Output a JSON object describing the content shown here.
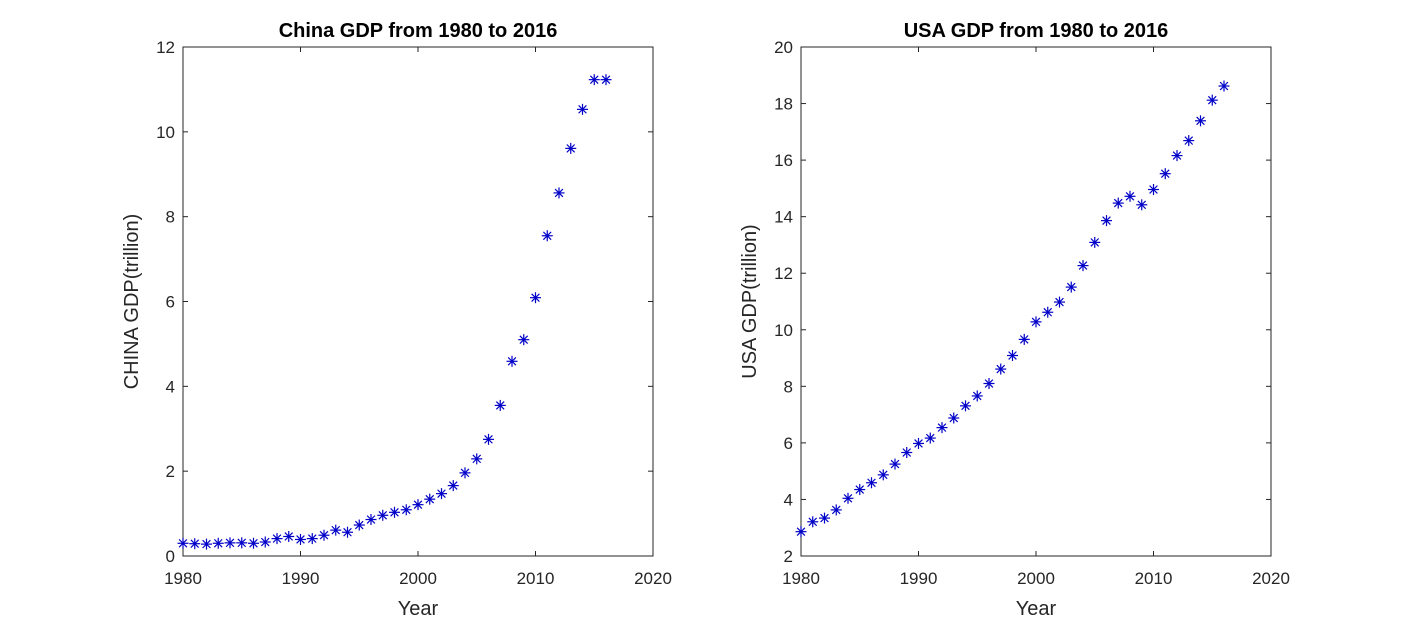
{
  "chart_data": [
    {
      "type": "scatter",
      "title": "China GDP from 1980 to 2016",
      "xlabel": "Year",
      "ylabel": "CHINA GDP(trillion)",
      "xlim": [
        1980,
        2020
      ],
      "ylim": [
        0,
        12
      ],
      "xticks": [
        1980,
        1990,
        2000,
        2010,
        2020
      ],
      "yticks": [
        0,
        2,
        4,
        6,
        8,
        10,
        12
      ],
      "marker": "asterisk",
      "color": "#0000c8",
      "grid": false,
      "x": [
        1980,
        1981,
        1982,
        1983,
        1984,
        1985,
        1986,
        1987,
        1988,
        1989,
        1990,
        1991,
        1992,
        1993,
        1994,
        1995,
        1996,
        1997,
        1998,
        1999,
        2000,
        2001,
        2002,
        2003,
        2004,
        2005,
        2006,
        2007,
        2008,
        2009,
        2010,
        2011,
        2012,
        2013,
        2014,
        2015,
        2016
      ],
      "y": [
        0.3,
        0.29,
        0.28,
        0.3,
        0.31,
        0.31,
        0.3,
        0.33,
        0.41,
        0.46,
        0.39,
        0.41,
        0.49,
        0.61,
        0.56,
        0.73,
        0.86,
        0.96,
        1.03,
        1.09,
        1.21,
        1.34,
        1.47,
        1.66,
        1.96,
        2.29,
        2.75,
        3.55,
        4.59,
        5.1,
        6.09,
        7.55,
        8.56,
        9.61,
        10.53,
        11.23,
        11.23
      ]
    },
    {
      "type": "scatter",
      "title": "USA GDP from 1980 to 2016",
      "xlabel": "Year",
      "ylabel": "USA GDP(trillion)",
      "xlim": [
        1980,
        2020
      ],
      "ylim": [
        2,
        20
      ],
      "xticks": [
        1980,
        1990,
        2000,
        2010,
        2020
      ],
      "yticks": [
        2,
        4,
        6,
        8,
        10,
        12,
        14,
        16,
        18,
        20
      ],
      "marker": "asterisk",
      "color": "#0000c8",
      "grid": false,
      "x": [
        1980,
        1981,
        1982,
        1983,
        1984,
        1985,
        1986,
        1987,
        1988,
        1989,
        1990,
        1991,
        1992,
        1993,
        1994,
        1995,
        1996,
        1997,
        1998,
        1999,
        2000,
        2001,
        2002,
        2003,
        2004,
        2005,
        2006,
        2007,
        2008,
        2009,
        2010,
        2011,
        2012,
        2013,
        2014,
        2015,
        2016
      ],
      "y": [
        2.86,
        3.21,
        3.34,
        3.63,
        4.04,
        4.35,
        4.59,
        4.87,
        5.25,
        5.66,
        5.98,
        6.17,
        6.54,
        6.88,
        7.31,
        7.66,
        8.1,
        8.61,
        9.09,
        9.66,
        10.28,
        10.62,
        10.98,
        11.51,
        12.27,
        13.09,
        13.86,
        14.48,
        14.72,
        14.42,
        14.96,
        15.52,
        16.16,
        16.69,
        17.39,
        18.12,
        18.62
      ]
    }
  ]
}
